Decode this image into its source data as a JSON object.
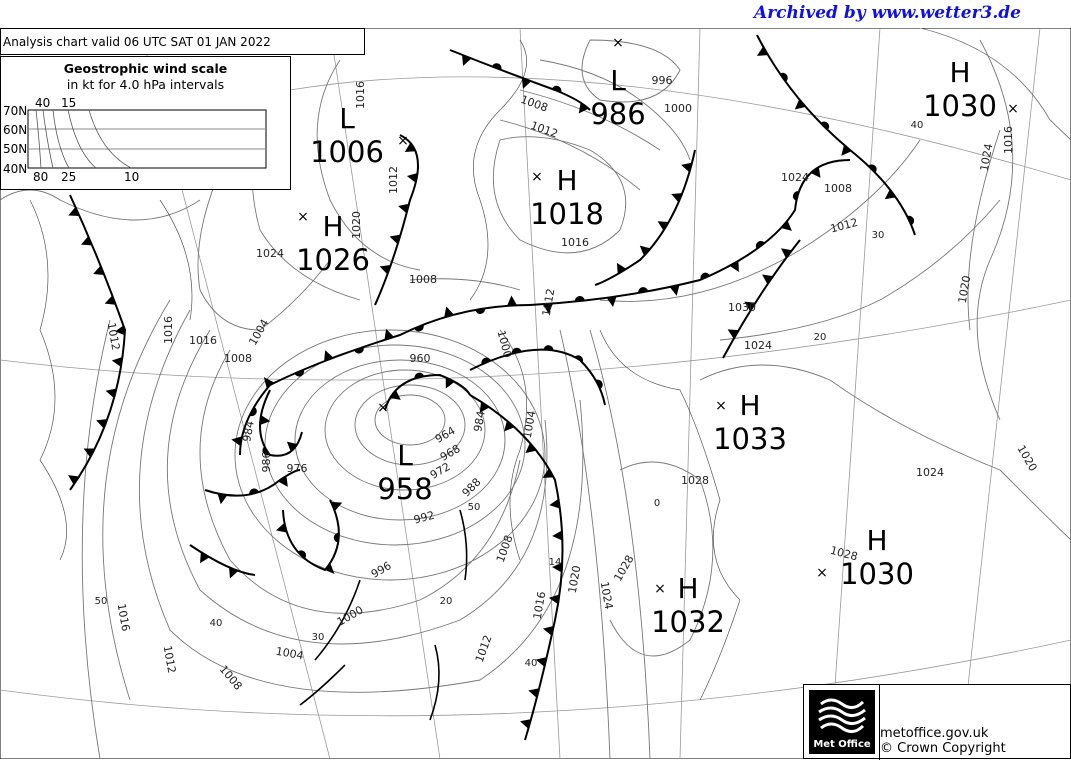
{
  "archive_banner": "Archived by www.wetter3.de",
  "title": "Analysis chart  valid 06 UTC SAT 01  JAN 2022",
  "wind_scale": {
    "heading": "Geostrophic wind scale",
    "subheading": "in kt for 4.0 hPa intervals",
    "latitudes": [
      "70N",
      "60N",
      "50N",
      "40N"
    ],
    "top_labels": [
      "40",
      "15"
    ],
    "bottom_labels": [
      "80",
      "25",
      "10"
    ]
  },
  "pressure_centres": [
    {
      "type": "L",
      "value": "986"
    },
    {
      "type": "H",
      "value": "1030"
    },
    {
      "type": "L",
      "value": "1006"
    },
    {
      "type": "H",
      "value": "1018"
    },
    {
      "type": "H",
      "value": "1026"
    },
    {
      "type": "L",
      "value": "958"
    },
    {
      "type": "H",
      "value": "1033"
    },
    {
      "type": "H",
      "value": "1030"
    },
    {
      "type": "H",
      "value": "1032"
    }
  ],
  "isobar_labels": [
    "1016",
    "1008",
    "1012",
    "996",
    "1000",
    "1024",
    "1008",
    "1012",
    "1016",
    "1024",
    "1020",
    "1016",
    "1020",
    "1012",
    "1024",
    "1008",
    "1012",
    "1016",
    "1016",
    "1008",
    "1004",
    "1030",
    "1024",
    "1028",
    "1024",
    "1020",
    "1028",
    "1028",
    "1024",
    "1020",
    "1016",
    "1012",
    "1008",
    "996",
    "1000",
    "992",
    "988",
    "984",
    "1004",
    "1008",
    "1012",
    "1016",
    "976",
    "986",
    "984",
    "972",
    "968",
    "964",
    "960",
    "1000",
    "1004",
    "1012"
  ],
  "wind_labels": [
    "50",
    "40",
    "30",
    "20",
    "50",
    "0",
    "20",
    "30",
    "40",
    "14",
    "40"
  ],
  "colors": {
    "banner": "#1010e0",
    "isobar": "#777777",
    "front": "#000000"
  },
  "footer": {
    "logo_text": "Met Office",
    "site": "metoffice.gov.uk",
    "copyright": "© Crown Copyright"
  }
}
